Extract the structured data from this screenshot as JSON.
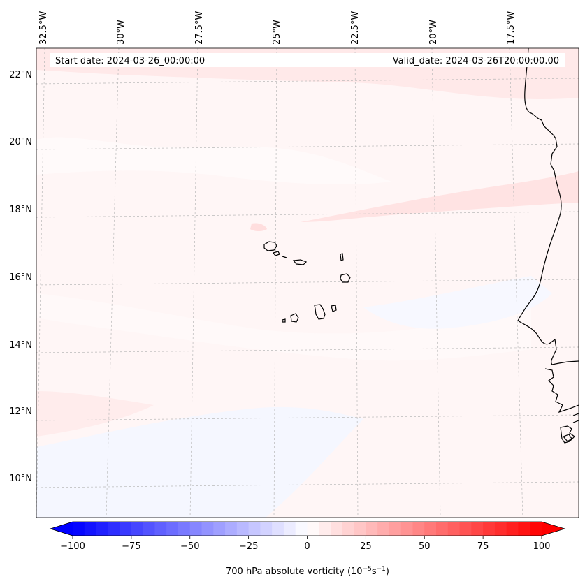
{
  "map": {
    "start_date": "Start date: 2024-03-26_00:00:00",
    "valid_date": "Valid_date: 2024-03-26T20:00:00.00",
    "lon_labels": [
      "32.5°W",
      "30°W",
      "27.5°W",
      "25°W",
      "22.5°W",
      "20°W",
      "17.5°W"
    ],
    "lat_labels": [
      "22°N",
      "20°N",
      "18°N",
      "16°N",
      "14°N",
      "12°N",
      "10°N"
    ]
  },
  "colorbar": {
    "label_prefix": "700 hPa absolute vorticity (10",
    "label_exp1": "−5",
    "label_mid": "s",
    "label_exp2": "−1",
    "label_suffix": ")",
    "ticks": [
      "−100",
      "−75",
      "−50",
      "−25",
      "0",
      "25",
      "50",
      "75",
      "100"
    ],
    "min": -100,
    "max": 100,
    "low_color": "#0000ff",
    "mid_color": "#ffffff",
    "high_color": "#ff0000"
  },
  "colors": {
    "background_field": "#fff6f6",
    "positive_band": "#ffe6e6",
    "negative_band": "#f4f6ff",
    "coastline": "#000000",
    "gridline": "#b0b0b0"
  }
}
